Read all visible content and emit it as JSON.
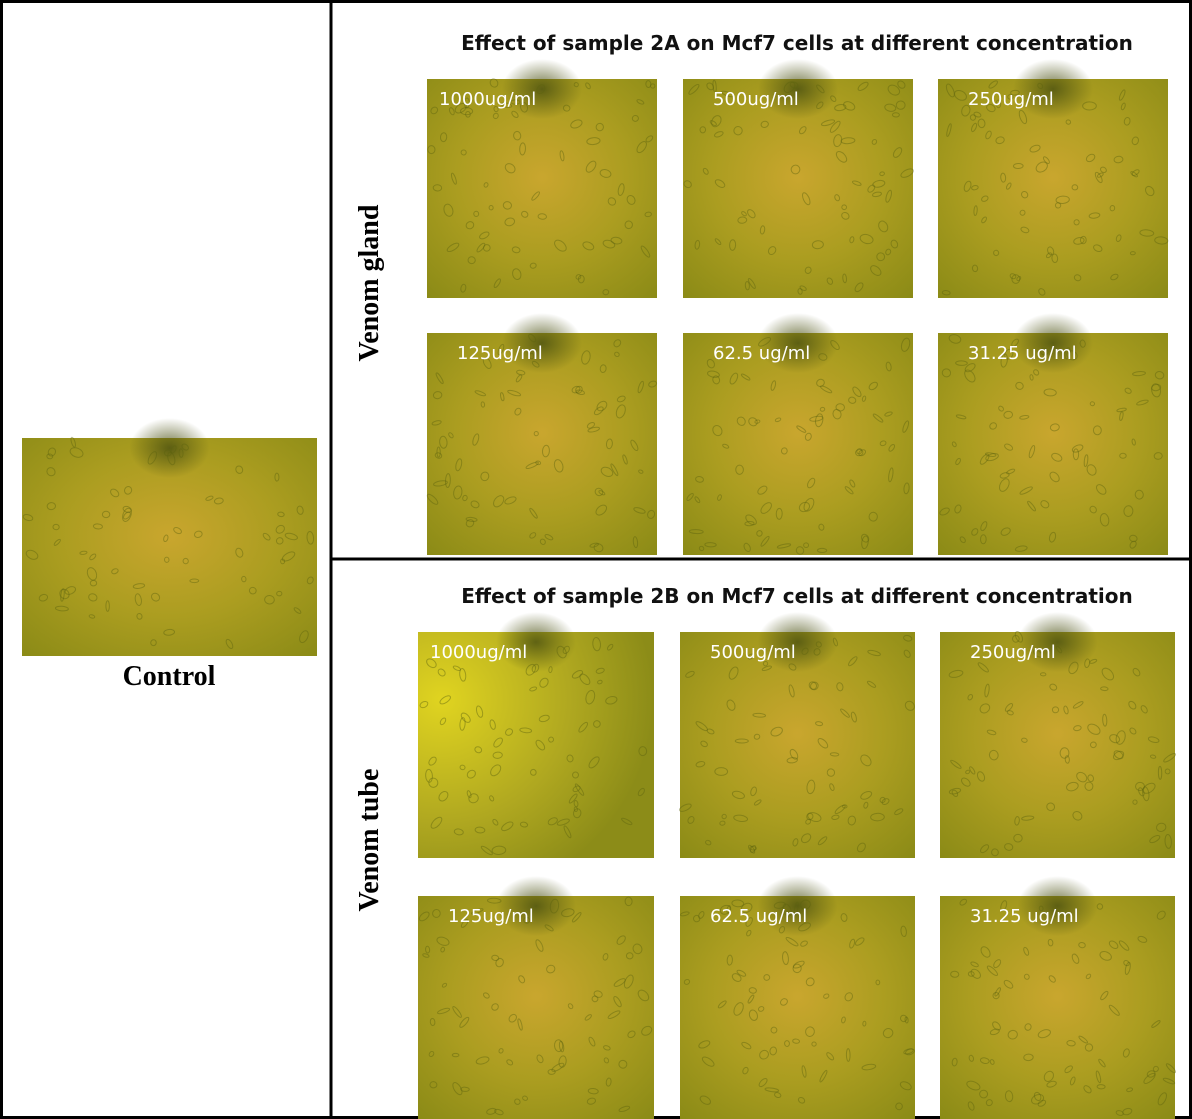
{
  "control": {
    "label": "Control"
  },
  "sections": [
    {
      "title": "Effect of sample 2A on Mcf7 cells at different concentration",
      "row_label": "Venom gland",
      "images": [
        {
          "label": "1000ug/ml"
        },
        {
          "label": "500ug/ml"
        },
        {
          "label": "250ug/ml"
        },
        {
          "label": "125ug/ml"
        },
        {
          "label": "62.5 ug/ml"
        },
        {
          "label": "31.25 ug/ml"
        }
      ]
    },
    {
      "title": "Effect of sample 2B on Mcf7 cells at different concentration",
      "row_label": "Venom tube",
      "images": [
        {
          "label": "1000ug/ml"
        },
        {
          "label": "500ug/ml"
        },
        {
          "label": "250ug/ml"
        },
        {
          "label": "125ug/ml"
        },
        {
          "label": "62.5 ug/ml"
        },
        {
          "label": "31.25 ug/ml"
        }
      ]
    }
  ]
}
